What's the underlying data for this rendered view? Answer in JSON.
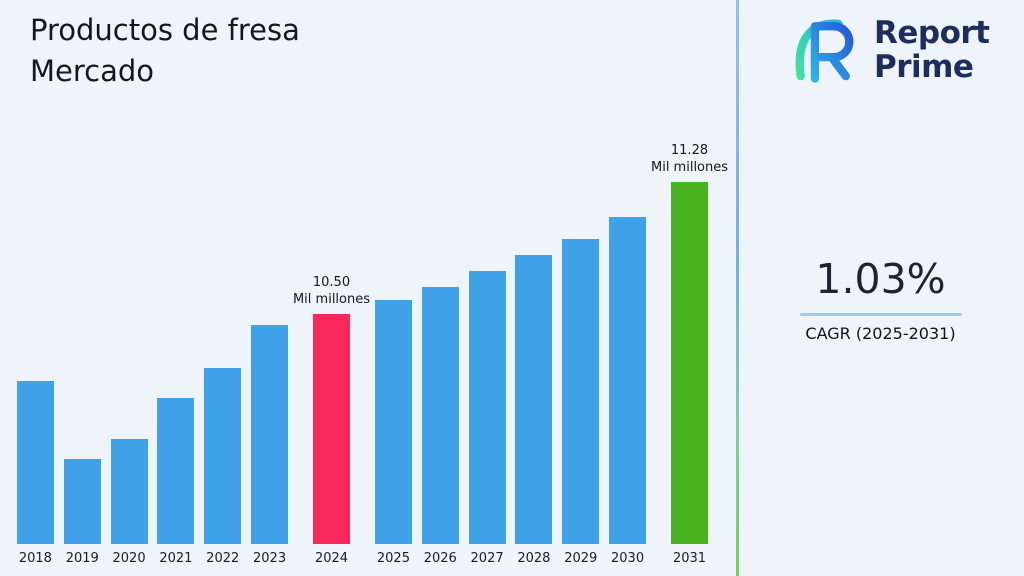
{
  "page": {
    "title_line1": "Productos de fresa",
    "title_line2": "Mercado",
    "background_color": "#eff4fb"
  },
  "logo": {
    "name_line1": "Report",
    "name_line2": "Prime",
    "icon": "report-prime-mark",
    "brand_color": "#1f2c5e",
    "icon_gradient": [
      "#3fd8a4",
      "#2f7bf0"
    ]
  },
  "metric": {
    "value": "1.03%",
    "label": "CAGR (2025-2031)",
    "rule_color": "#a9c8ef"
  },
  "chart_data": {
    "type": "bar",
    "title": "Productos de fresa Mercado",
    "unit": "Mil millones",
    "categories": [
      "2018",
      "2019",
      "2020",
      "2021",
      "2022",
      "2023",
      "2024",
      "2025",
      "2026",
      "2027",
      "2028",
      "2029",
      "2030",
      "2031"
    ],
    "values": [
      10.1,
      9.64,
      9.76,
      10.0,
      10.18,
      10.43,
      10.5,
      10.58,
      10.66,
      10.75,
      10.85,
      10.94,
      11.07,
      11.28
    ],
    "bar_color_default": "#3fa2e9",
    "bar_color_overrides": {
      "2024": "#f8285a",
      "2031": "#4ab520"
    },
    "annotations": [
      {
        "category": "2024",
        "value_label": "10.50",
        "unit_label": "Mil millones"
      },
      {
        "category": "2031",
        "value_label": "11.28",
        "unit_label": "Mil millones"
      }
    ],
    "xlabel": "",
    "ylabel": "",
    "ylim": [
      9.1,
      11.4
    ],
    "gridlines": false,
    "legend": false
  }
}
